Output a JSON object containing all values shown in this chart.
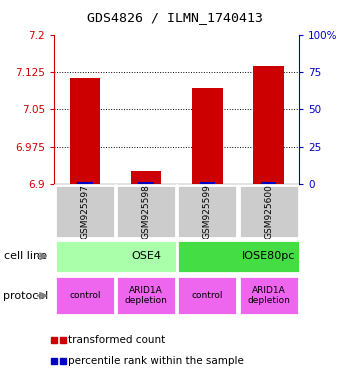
{
  "title": "GDS4826 / ILMN_1740413",
  "samples": [
    "GSM925597",
    "GSM925598",
    "GSM925599",
    "GSM925600"
  ],
  "red_values": [
    7.112,
    6.927,
    7.093,
    7.138
  ],
  "blue_values": [
    6.902,
    6.901,
    6.902,
    6.902
  ],
  "ylim_left": [
    6.9,
    7.2
  ],
  "ylim_right": [
    0,
    100
  ],
  "yticks_left": [
    6.9,
    6.975,
    7.05,
    7.125,
    7.2
  ],
  "yticks_right": [
    0,
    25,
    50,
    75,
    100
  ],
  "ytick_labels_left": [
    "6.9",
    "6.975",
    "7.05",
    "7.125",
    "7.2"
  ],
  "ytick_labels_right": [
    "0",
    "25",
    "50",
    "75",
    "100%"
  ],
  "cell_line_labels": [
    "OSE4",
    "IOSE80pc"
  ],
  "cell_line_spans": [
    [
      0,
      2
    ],
    [
      2,
      4
    ]
  ],
  "cell_line_colors": [
    "#aaffaa",
    "#44dd44"
  ],
  "protocol_labels": [
    "control",
    "ARID1A\ndepletion",
    "control",
    "ARID1A\ndepletion"
  ],
  "protocol_color": "#ee66ee",
  "red_color": "#cc0000",
  "blue_color": "#0000cc",
  "gray_color": "#cccccc",
  "base_value": 6.9,
  "bar_width": 0.5
}
